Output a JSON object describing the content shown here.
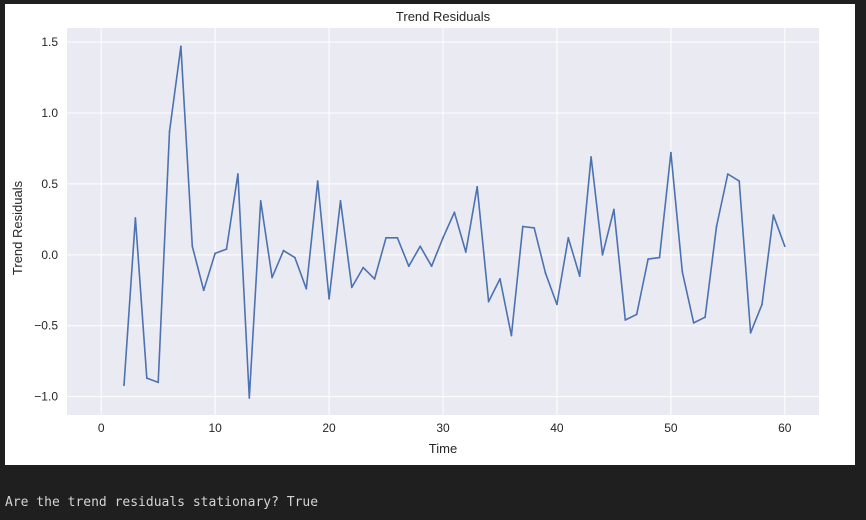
{
  "output": {
    "text": "Are the trend residuals stationary? True"
  },
  "chart_data": {
    "type": "line",
    "title": "Trend Residuals",
    "xlabel": "Time",
    "ylabel": "Trend Residuals",
    "xlim": [
      -3,
      63
    ],
    "ylim": [
      -1.13,
      1.6
    ],
    "xticks": [
      0,
      10,
      20,
      30,
      40,
      50,
      60
    ],
    "yticks": [
      -1.0,
      -0.5,
      0.0,
      0.5,
      1.0,
      1.5
    ],
    "ytick_labels": [
      "−1.0",
      "−0.5",
      "0.0",
      "0.5",
      "1.0",
      "1.5"
    ],
    "grid": true,
    "colors": {
      "line": "#4c72b0",
      "axes_bg": "#eaeaf2",
      "grid": "#ffffff"
    },
    "series": [
      {
        "x": [
          2,
          3,
          4,
          5,
          6,
          7,
          8,
          9,
          10,
          11,
          12,
          13,
          14,
          15,
          16,
          17,
          18,
          19,
          20,
          21,
          22,
          23,
          24,
          25,
          26,
          27,
          28,
          29,
          30,
          31,
          32,
          33,
          34,
          35,
          36,
          37,
          38,
          39,
          40,
          41,
          42,
          43,
          44,
          45,
          46,
          47,
          48,
          49,
          50,
          51,
          52,
          53,
          54,
          55,
          56,
          57,
          58,
          59,
          60
        ],
        "values": [
          -0.92,
          0.26,
          -0.87,
          -0.9,
          0.87,
          1.47,
          0.06,
          -0.25,
          0.01,
          0.04,
          0.57,
          -1.01,
          0.38,
          -0.16,
          0.03,
          -0.02,
          -0.24,
          0.52,
          -0.31,
          0.38,
          -0.23,
          -0.09,
          -0.17,
          0.12,
          0.12,
          -0.08,
          0.06,
          -0.08,
          0.12,
          0.3,
          0.02,
          0.48,
          -0.33,
          -0.17,
          -0.57,
          0.2,
          0.19,
          -0.13,
          -0.35,
          0.12,
          -0.15,
          0.69,
          0.0,
          0.32,
          -0.46,
          -0.42,
          -0.03,
          -0.02,
          0.72,
          -0.12,
          -0.48,
          -0.44,
          0.2,
          0.57,
          0.52,
          -0.55,
          -0.35,
          0.28,
          0.06
        ]
      }
    ]
  }
}
